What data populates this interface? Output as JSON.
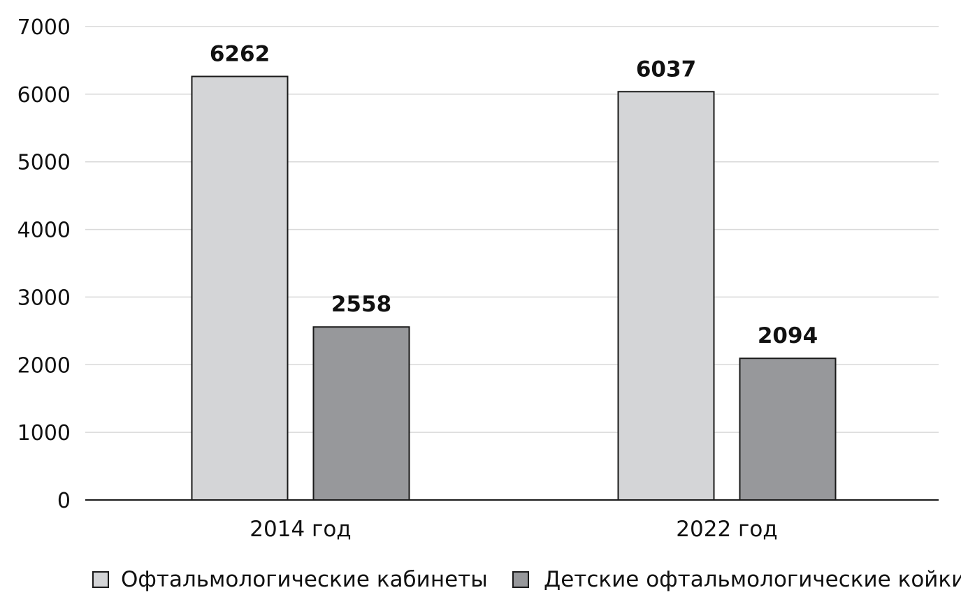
{
  "chart_data": {
    "type": "bar",
    "categories": [
      "2014 год",
      "2022 год"
    ],
    "series": [
      {
        "name": "Офтальмологические кабинеты",
        "values": [
          6262,
          6037
        ],
        "color": "#d4d5d7"
      },
      {
        "name": "Детские офтальмологические койки",
        "values": [
          2558,
          2094
        ],
        "color": "#97989b"
      }
    ],
    "yticks": [
      "0",
      "1000",
      "2000",
      "3000",
      "4000",
      "5000",
      "6000",
      "7000"
    ],
    "ylim": [
      0,
      7000
    ],
    "grid": true,
    "legend_position": "bottom",
    "colors": {
      "gridline": "#d9d9d9",
      "axis": "#1a1a1a",
      "bar_outline": "#1a1a1a",
      "text": "#111111"
    }
  }
}
